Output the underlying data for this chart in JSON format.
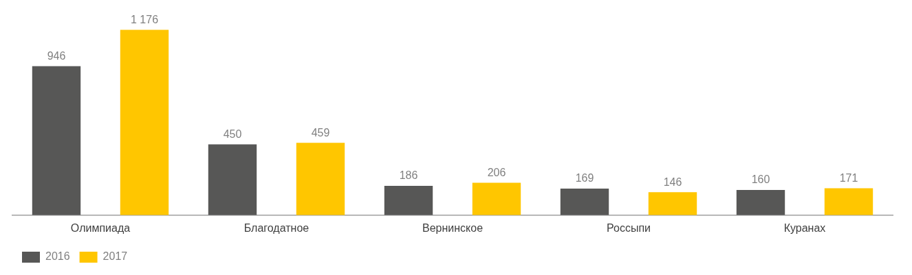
{
  "chart_data": {
    "type": "bar",
    "categories": [
      "Олимпиада",
      "Благодатное",
      "Вернинское",
      "Россыпи",
      "Куранах"
    ],
    "series": [
      {
        "name": "2016",
        "color": "#575756",
        "values": [
          946,
          450,
          186,
          169,
          160
        ],
        "value_labels": [
          "946",
          "450",
          "186",
          "169",
          "160"
        ]
      },
      {
        "name": "2017",
        "color": "#ffc600",
        "values": [
          1176,
          459,
          206,
          146,
          171
        ],
        "value_labels": [
          "1 176",
          "459",
          "206",
          "146",
          "171"
        ]
      }
    ],
    "grid": false,
    "legend": "bottom left"
  }
}
